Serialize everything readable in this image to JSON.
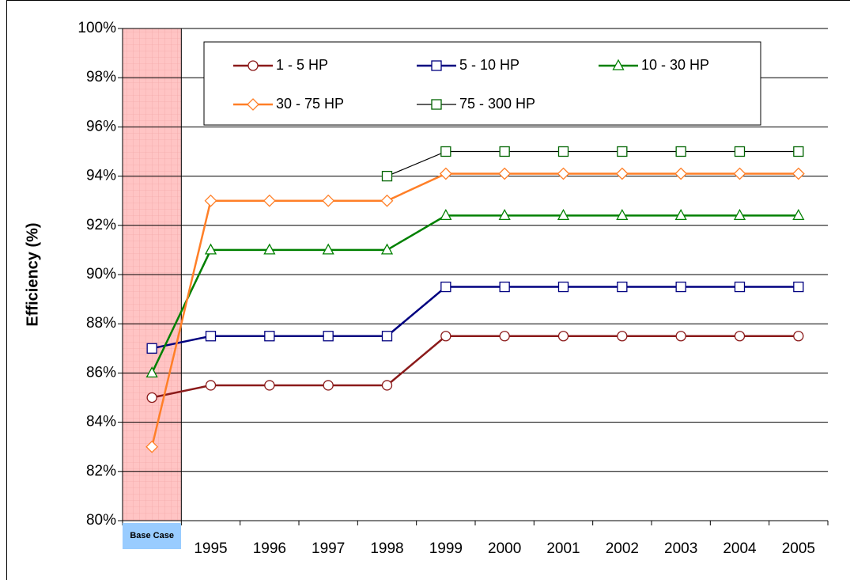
{
  "chart_data": {
    "type": "line",
    "y_label": "Efficiency (%)",
    "categories": [
      "Base Case",
      "1995",
      "1996",
      "1997",
      "1998",
      "1999",
      "2000",
      "2001",
      "2002",
      "2003",
      "2004",
      "2005"
    ],
    "series": [
      {
        "name": "1 - 5 HP",
        "color": "#8b1a1a",
        "marker": "circle",
        "values": [
          85,
          85.5,
          85.5,
          85.5,
          85.5,
          87.5,
          87.5,
          87.5,
          87.5,
          87.5,
          87.5,
          87.5
        ]
      },
      {
        "name": "5 - 10 HP",
        "color": "#000080",
        "marker": "square",
        "values": [
          87,
          87.5,
          87.5,
          87.5,
          87.5,
          89.5,
          89.5,
          89.5,
          89.5,
          89.5,
          89.5,
          89.5
        ]
      },
      {
        "name": "10 - 30 HP",
        "color": "#008000",
        "marker": "triangle",
        "values": [
          86,
          91,
          91,
          91,
          91,
          92.4,
          92.4,
          92.4,
          92.4,
          92.4,
          92.4,
          92.4
        ]
      },
      {
        "name": "30 - 75 HP",
        "color": "#ff7f27",
        "marker": "diamond",
        "values": [
          83,
          93,
          93,
          93,
          93,
          94.1,
          94.1,
          94.1,
          94.1,
          94.1,
          94.1,
          94.1
        ]
      },
      {
        "name": "75 - 300 HP",
        "color": "#006400",
        "line_color": "#000000",
        "marker": "square",
        "values": [
          null,
          null,
          null,
          null,
          94,
          95,
          95,
          95,
          95,
          95,
          95,
          95
        ]
      }
    ],
    "ylim": [
      80,
      100
    ],
    "yticks": [
      {
        "value": 80,
        "label": "80%"
      },
      {
        "value": 82,
        "label": "82%"
      },
      {
        "value": 84,
        "label": "84%"
      },
      {
        "value": 86,
        "label": "86%"
      },
      {
        "value": 88,
        "label": "88%"
      },
      {
        "value": 90,
        "label": "90%"
      },
      {
        "value": 92,
        "label": "92%"
      },
      {
        "value": 94,
        "label": "94%"
      },
      {
        "value": 96,
        "label": "96%"
      },
      {
        "value": 98,
        "label": "98%"
      },
      {
        "value": 100,
        "label": "100%"
      }
    ],
    "grid": true,
    "legend": "top"
  }
}
